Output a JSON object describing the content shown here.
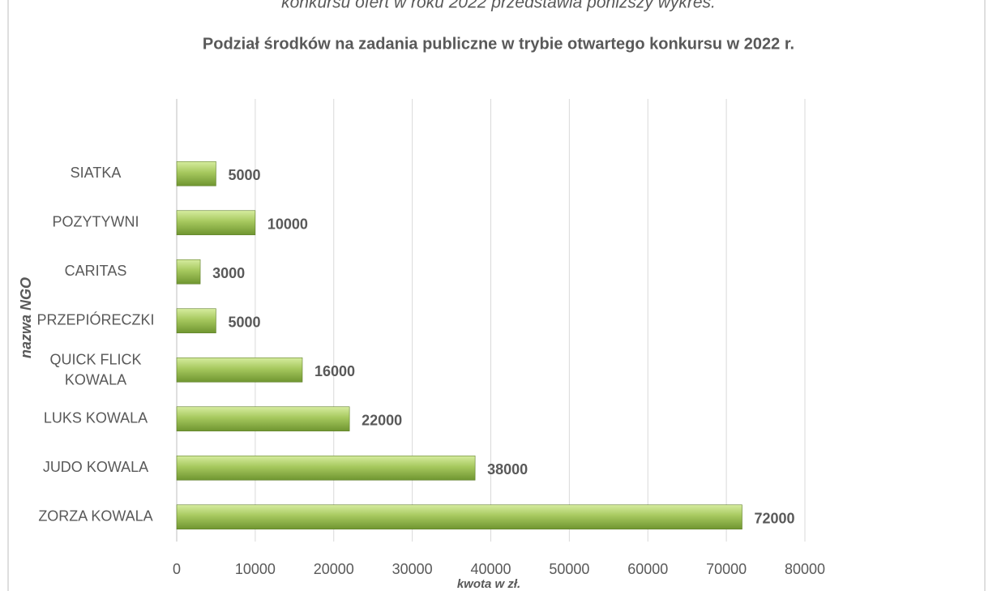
{
  "document_text": "konkursu ofert w roku 2022 przedstawia poniższy wykres.",
  "chart_data": {
    "type": "bar",
    "orientation": "horizontal",
    "title": "Podział  środków na zadania publiczne w trybie otwartego konkursu w 2022 r.",
    "xlabel": "kwota w zł.",
    "ylabel": "nazwa NGO",
    "categories": [
      "SIATKA",
      "POZYTYWNI",
      "CARITAS",
      "PRZEPIÓRECZKI",
      "QUICK FLICK KOWALA",
      "LUKS KOWALA",
      "JUDO KOWALA",
      "ZORZA  KOWALA"
    ],
    "values": [
      5000,
      10000,
      3000,
      5000,
      16000,
      22000,
      38000,
      72000
    ],
    "color": "#9bbb59",
    "xlim": [
      0,
      80000
    ],
    "xticks": [
      0,
      10000,
      20000,
      30000,
      40000,
      50000,
      60000,
      70000,
      80000
    ],
    "grid": true
  }
}
